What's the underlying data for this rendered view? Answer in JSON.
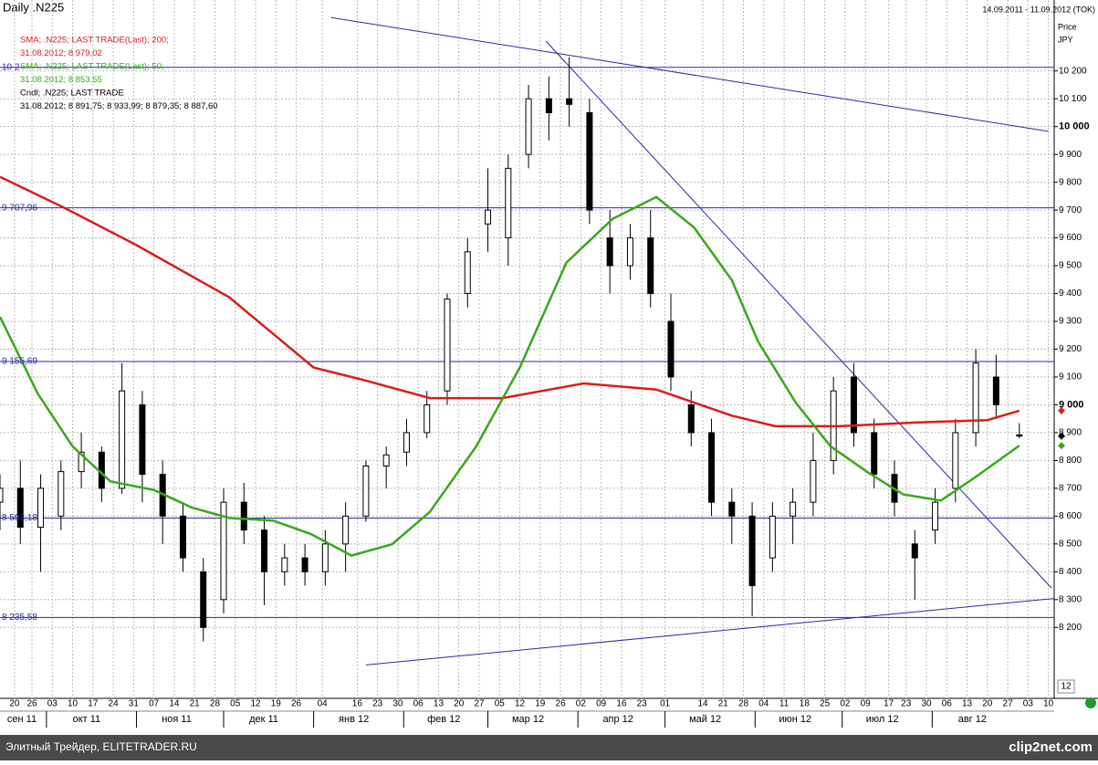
{
  "chart_data": {
    "type": "candlestick",
    "title": "Daily .N225",
    "date_range": "14.09.2011 - 11.09.2012 (TOK)",
    "y_axis_title": "Price",
    "y_axis_unit": "JPY",
    "bottom_label": "12",
    "footer": "Элитный Трейдер, ELITETRADER.RU",
    "brand": "clip2net.com",
    "up_color": "#ffffff",
    "down_color": "#000000",
    "series": {
      "name": "Cndl; .N225; LAST TRADE",
      "last_label": "31.08.2012; 8 891,75; 8 933,99; 8 879,35; 8 887,60",
      "x": [
        "2011-09-15",
        "2011-09-22",
        "2011-09-29",
        "2011-10-06",
        "2011-10-13",
        "2011-10-20",
        "2011-10-27",
        "2011-11-03",
        "2011-11-10",
        "2011-11-17",
        "2011-11-24",
        "2011-12-01",
        "2011-12-08",
        "2011-12-15",
        "2011-12-22",
        "2011-12-29",
        "2012-01-05",
        "2012-01-12",
        "2012-01-19",
        "2012-01-26",
        "2012-02-02",
        "2012-02-09",
        "2012-02-16",
        "2012-02-23",
        "2012-03-01",
        "2012-03-08",
        "2012-03-15",
        "2012-03-22",
        "2012-03-29",
        "2012-04-05",
        "2012-04-12",
        "2012-04-19",
        "2012-04-26",
        "2012-05-03",
        "2012-05-10",
        "2012-05-17",
        "2012-05-24",
        "2012-05-31",
        "2012-06-07",
        "2012-06-14",
        "2012-06-21",
        "2012-06-28",
        "2012-07-05",
        "2012-07-12",
        "2012-07-19",
        "2012-07-26",
        "2012-08-02",
        "2012-08-09",
        "2012-08-16",
        "2012-08-23",
        "2012-08-31"
      ],
      "open": [
        8650,
        8700,
        8560,
        8600,
        8760,
        8830,
        8700,
        9000,
        8750,
        8600,
        8400,
        8300,
        8650,
        8550,
        8400,
        8450,
        8400,
        8500,
        8600,
        8780,
        8830,
        8900,
        9050,
        9400,
        9650,
        9600,
        9900,
        10100,
        10100,
        10050,
        9600,
        9500,
        9600,
        9300,
        9000,
        8900,
        8650,
        8600,
        8450,
        8600,
        8650,
        8800,
        9100,
        8900,
        8750,
        8500,
        8550,
        8700,
        8900,
        9100,
        8891.75
      ],
      "high": [
        8750,
        8800,
        8750,
        8800,
        8900,
        8850,
        9150,
        9050,
        8800,
        8650,
        8450,
        8700,
        8720,
        8600,
        8500,
        8500,
        8550,
        8650,
        8800,
        8850,
        8950,
        9050,
        9400,
        9600,
        9850,
        9900,
        10150,
        10180,
        10250,
        10100,
        9700,
        9650,
        9700,
        9400,
        9050,
        8950,
        8700,
        8650,
        8650,
        8700,
        8900,
        9100,
        9150,
        8950,
        8800,
        8550,
        8700,
        8950,
        9200,
        9180,
        8933.99
      ],
      "low": [
        8550,
        8500,
        8400,
        8550,
        8700,
        8650,
        8680,
        8650,
        8500,
        8400,
        8150,
        8250,
        8500,
        8280,
        8350,
        8350,
        8350,
        8400,
        8580,
        8700,
        8780,
        8880,
        9000,
        9350,
        9550,
        9500,
        9850,
        9950,
        10000,
        9650,
        9400,
        9450,
        9350,
        9050,
        8850,
        8600,
        8500,
        8240,
        8400,
        8500,
        8600,
        8750,
        8850,
        8700,
        8600,
        8300,
        8500,
        8650,
        8850,
        8950,
        8879.35
      ],
      "close": [
        8700,
        8560,
        8700,
        8760,
        8830,
        8700,
        9050,
        8750,
        8600,
        8450,
        8200,
        8650,
        8550,
        8400,
        8450,
        8400,
        8500,
        8600,
        8780,
        8820,
        8900,
        9000,
        9380,
        9550,
        9700,
        9850,
        10100,
        10050,
        10080,
        9700,
        9500,
        9600,
        9400,
        9100,
        8900,
        8650,
        8600,
        8350,
        8600,
        8650,
        8800,
        9050,
        8900,
        8750,
        8650,
        8450,
        8650,
        8900,
        9150,
        9000,
        8887.6
      ]
    },
    "overlays": [
      {
        "name": "SMA; .N225; LAST TRADE(Last);  200;",
        "last_label": "31.08.2012; 8 979,02",
        "color": "#dd1c1c",
        "x": [
          "2011-09-15",
          "2011-10-07",
          "2011-11-01",
          "2011-12-03",
          "2012-01-01",
          "2012-01-19",
          "2012-02-10",
          "2012-03-06",
          "2012-04-03",
          "2012-04-28",
          "2012-05-24",
          "2012-06-08",
          "2012-06-30",
          "2012-07-25",
          "2012-08-20",
          "2012-08-31"
        ],
        "values": [
          9819,
          9709,
          9574,
          9386,
          9134,
          9087,
          9024,
          9024,
          9077,
          9055,
          8961,
          8923,
          8923,
          8936,
          8945,
          8979.02
        ]
      },
      {
        "name": "SMA; .N225; LAST TRADE(Last);  50;",
        "last_label": "31.08.2012; 8 853,55",
        "color": "#3aa81c",
        "x": [
          "2011-09-15",
          "2011-09-28",
          "2011-10-10",
          "2011-10-23",
          "2011-11-07",
          "2011-11-20",
          "2011-12-03",
          "2011-12-18",
          "2011-12-31",
          "2012-01-14",
          "2012-01-28",
          "2012-02-10",
          "2012-02-26",
          "2012-03-12",
          "2012-03-28",
          "2012-04-13",
          "2012-04-28",
          "2012-05-11",
          "2012-05-24",
          "2012-06-02",
          "2012-06-15",
          "2012-06-27",
          "2012-07-10",
          "2012-07-22",
          "2012-08-04",
          "2012-08-16",
          "2012-08-31"
        ],
        "values": [
          9316,
          9040,
          8851,
          8725,
          8694,
          8631,
          8593,
          8584,
          8536,
          8458,
          8499,
          8615,
          8851,
          9134,
          9511,
          9669,
          9747,
          9637,
          9448,
          9228,
          9008,
          8851,
          8756,
          8678,
          8656,
          8741,
          8853.55
        ]
      }
    ],
    "hlines": [
      {
        "value": 10213,
        "label": "10 2"
      },
      {
        "value": 9707.96,
        "label": "9 707,96"
      },
      {
        "value": 9155.69,
        "label": "9 155,69"
      },
      {
        "value": 8593.18,
        "label": "8 593,18"
      },
      {
        "value": 8235.58,
        "label": "8 235,58"
      }
    ],
    "trendlines": [
      {
        "x": [
          "2012-01-07",
          "2012-09-10"
        ],
        "values": [
          10392,
          9983
        ]
      },
      {
        "x": [
          "2012-03-21",
          "2012-09-11"
        ],
        "values": [
          10307,
          8342
        ]
      },
      {
        "x": [
          "2012-01-19",
          "2012-09-12"
        ],
        "values": [
          8065,
          8304
        ]
      }
    ],
    "xlim": [
      "2011-09-15",
      "2012-09-12"
    ],
    "ylim": [
      7945,
      10455
    ],
    "yticks": [
      {
        "value": 8200,
        "label": "8 200"
      },
      {
        "value": 8300,
        "label": "8 300"
      },
      {
        "value": 8400,
        "label": "8 400"
      },
      {
        "value": 8500,
        "label": "8 500"
      },
      {
        "value": 8600,
        "label": "8 600"
      },
      {
        "value": 8700,
        "label": "8 700"
      },
      {
        "value": 8800,
        "label": "8 800"
      },
      {
        "value": 8900,
        "label": "8 900"
      },
      {
        "value": 9000,
        "label": "9 000",
        "bold": true
      },
      {
        "value": 9100,
        "label": "9 100"
      },
      {
        "value": 9200,
        "label": "9 200"
      },
      {
        "value": 9300,
        "label": "9 300"
      },
      {
        "value": 9400,
        "label": "9 400"
      },
      {
        "value": 9500,
        "label": "9 500"
      },
      {
        "value": 9600,
        "label": "9 600"
      },
      {
        "value": 9700,
        "label": "9 700"
      },
      {
        "value": 9800,
        "label": "9 800"
      },
      {
        "value": 9900,
        "label": "9 900"
      },
      {
        "value": 10000,
        "label": "10 000",
        "bold": true
      },
      {
        "value": 10100,
        "label": "10 100"
      },
      {
        "value": 10200,
        "label": "10 200"
      }
    ],
    "xticks": [
      {
        "value": "2011-09-20",
        "label": "20"
      },
      {
        "value": "2011-09-26",
        "label": "26"
      },
      {
        "value": "2011-10-03",
        "label": "03"
      },
      {
        "value": "2011-10-10",
        "label": "10"
      },
      {
        "value": "2011-10-17",
        "label": "17"
      },
      {
        "value": "2011-10-24",
        "label": "24"
      },
      {
        "value": "2011-10-31",
        "label": "31"
      },
      {
        "value": "2011-11-07",
        "label": "07"
      },
      {
        "value": "2011-11-14",
        "label": "14"
      },
      {
        "value": "2011-11-21",
        "label": "21"
      },
      {
        "value": "2011-11-28",
        "label": "28"
      },
      {
        "value": "2011-12-05",
        "label": "05"
      },
      {
        "value": "2011-12-12",
        "label": "12"
      },
      {
        "value": "2011-12-19",
        "label": "19"
      },
      {
        "value": "2011-12-26",
        "label": "26"
      },
      {
        "value": "2012-01-04",
        "label": "04"
      },
      {
        "value": "2012-01-16",
        "label": "16"
      },
      {
        "value": "2012-01-23",
        "label": "23"
      },
      {
        "value": "2012-01-30",
        "label": "30"
      },
      {
        "value": "2012-02-06",
        "label": "06"
      },
      {
        "value": "2012-02-13",
        "label": "13"
      },
      {
        "value": "2012-02-20",
        "label": "20"
      },
      {
        "value": "2012-02-27",
        "label": "27"
      },
      {
        "value": "2012-03-05",
        "label": "05"
      },
      {
        "value": "2012-03-12",
        "label": "12"
      },
      {
        "value": "2012-03-19",
        "label": "19"
      },
      {
        "value": "2012-03-26",
        "label": "26"
      },
      {
        "value": "2012-04-02",
        "label": "02"
      },
      {
        "value": "2012-04-09",
        "label": "09"
      },
      {
        "value": "2012-04-16",
        "label": "16"
      },
      {
        "value": "2012-04-23",
        "label": "23"
      },
      {
        "value": "2012-05-01",
        "label": "01"
      },
      {
        "value": "2012-05-14",
        "label": "14"
      },
      {
        "value": "2012-05-21",
        "label": "21"
      },
      {
        "value": "2012-05-28",
        "label": "28"
      },
      {
        "value": "2012-06-04",
        "label": "04"
      },
      {
        "value": "2012-06-11",
        "label": "11"
      },
      {
        "value": "2012-06-18",
        "label": "18"
      },
      {
        "value": "2012-06-25",
        "label": "25"
      },
      {
        "value": "2012-07-02",
        "label": "02"
      },
      {
        "value": "2012-07-09",
        "label": "09"
      },
      {
        "value": "2012-07-17",
        "label": "17"
      },
      {
        "value": "2012-07-23",
        "label": "23"
      },
      {
        "value": "2012-07-30",
        "label": "30"
      },
      {
        "value": "2012-08-06",
        "label": "06"
      },
      {
        "value": "2012-08-13",
        "label": "13"
      },
      {
        "value": "2012-08-20",
        "label": "20"
      },
      {
        "value": "2012-08-27",
        "label": "27"
      },
      {
        "value": "2012-09-03",
        "label": "03"
      },
      {
        "value": "2012-09-10",
        "label": "10"
      }
    ],
    "month_ticks": [
      {
        "value": "2011-09",
        "label": "сен 11"
      },
      {
        "value": "2011-10",
        "label": "окт 11"
      },
      {
        "value": "2011-11",
        "label": "ноя 11"
      },
      {
        "value": "2011-12",
        "label": "дек 11"
      },
      {
        "value": "2012-01",
        "label": "янв 12"
      },
      {
        "value": "2012-02",
        "label": "фев 12"
      },
      {
        "value": "2012-03",
        "label": "мар 12"
      },
      {
        "value": "2012-04",
        "label": "апр 12"
      },
      {
        "value": "2012-05",
        "label": "май 12"
      },
      {
        "value": "2012-06",
        "label": "июн 12"
      },
      {
        "value": "2012-07",
        "label": "июл 12"
      },
      {
        "value": "2012-08",
        "label": "авг 12"
      }
    ]
  }
}
